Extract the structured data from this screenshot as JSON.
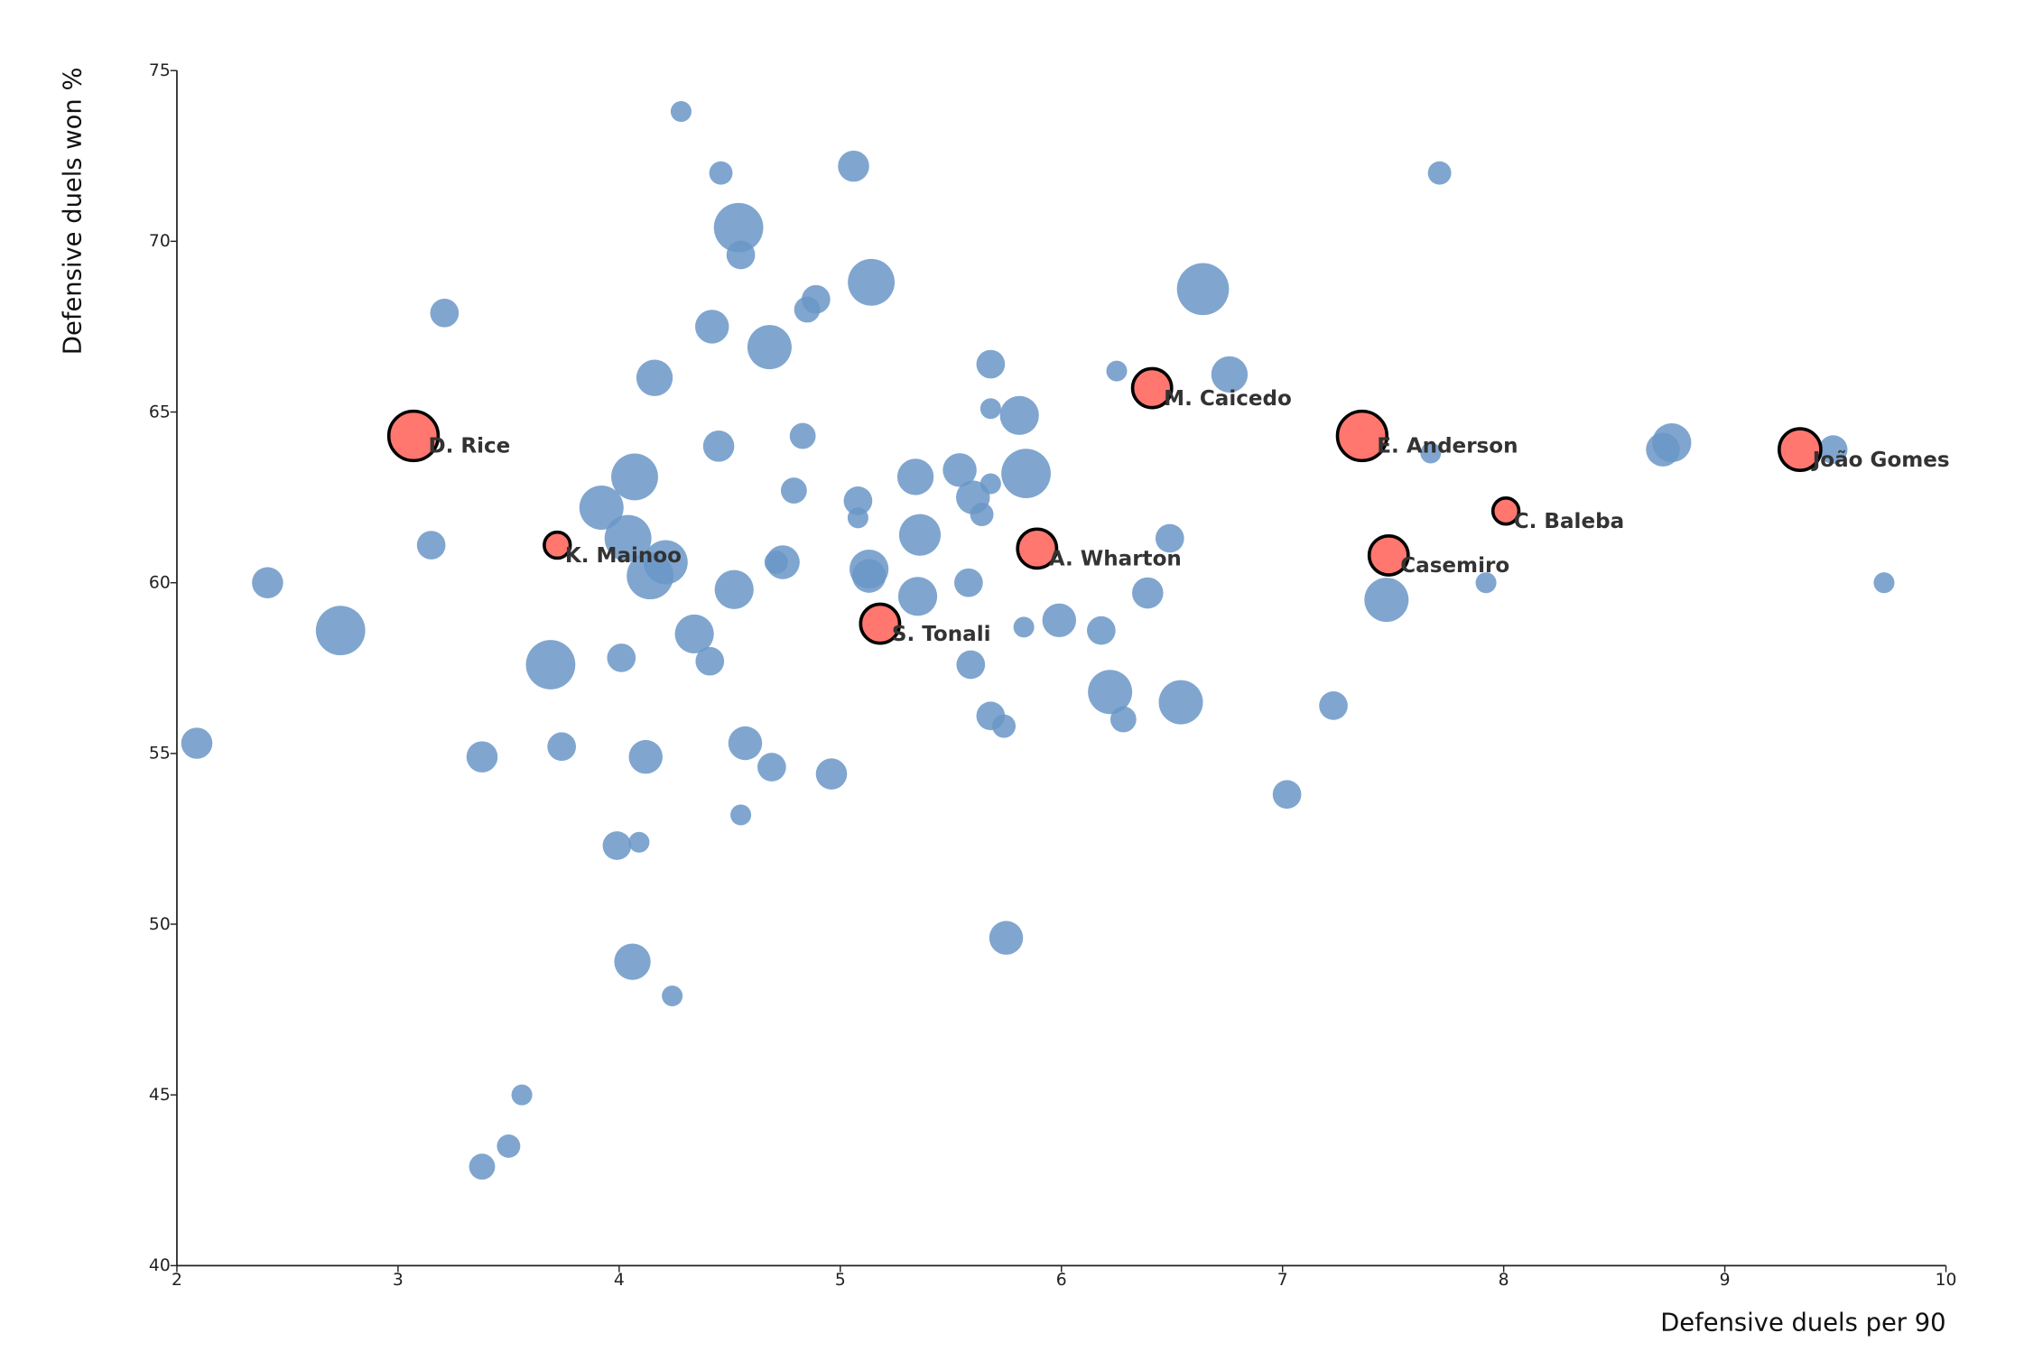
{
  "chart_data": {
    "type": "scatter",
    "x_label": "Defensive duels per 90",
    "y_label": "Defensive duels won %",
    "xlim": [
      2,
      10
    ],
    "xticks": [
      2,
      3,
      4,
      5,
      6,
      7,
      8,
      9,
      10
    ],
    "ylim": [
      40,
      75
    ],
    "yticks": [
      40,
      45,
      50,
      55,
      60,
      65,
      70,
      75
    ],
    "grid": false,
    "series": [
      {
        "color": "#6a97c7",
        "x": [
          4.28,
          4.46,
          5.06,
          7.71,
          4.54,
          4.55,
          5.14,
          6.64,
          4.89,
          4.85,
          3.21,
          4.42,
          4.68,
          5.68,
          6.25,
          6.76,
          4.16,
          5.68,
          5.81,
          4.83,
          4.45,
          8.76,
          8.72,
          9.49,
          7.67,
          5.54,
          5.84,
          4.07,
          5.34,
          5.68,
          4.79,
          5.6,
          5.08,
          3.92,
          5.64,
          5.08,
          5.36,
          6.49,
          4.04,
          3.15,
          4.21,
          4.74,
          4.71,
          5.13,
          5.13,
          4.14,
          2.41,
          5.58,
          7.92,
          9.72,
          4.52,
          5.35,
          6.39,
          7.47,
          5.99,
          5.83,
          6.18,
          2.74,
          4.34,
          4.01,
          4.41,
          5.59,
          3.69,
          6.22,
          6.54,
          7.23,
          5.68,
          6.28,
          5.74,
          2.09,
          4.57,
          3.74,
          3.38,
          4.12,
          4.69,
          4.96,
          7.02,
          4.55,
          3.99,
          4.09,
          5.75,
          4.06,
          4.24,
          3.56,
          3.5,
          3.38
        ],
        "y": [
          73.8,
          72.0,
          72.2,
          72.0,
          70.4,
          69.6,
          68.8,
          68.6,
          68.3,
          68.0,
          67.9,
          67.5,
          66.9,
          66.4,
          66.2,
          66.1,
          66.0,
          65.1,
          64.9,
          64.3,
          64.0,
          64.1,
          63.9,
          63.9,
          63.8,
          63.3,
          63.2,
          63.1,
          63.1,
          62.9,
          62.7,
          62.5,
          62.4,
          62.2,
          62.0,
          61.9,
          61.4,
          61.3,
          61.3,
          61.1,
          60.6,
          60.6,
          60.6,
          60.4,
          60.2,
          60.2,
          60.0,
          60.0,
          60.0,
          60.0,
          59.8,
          59.6,
          59.7,
          59.5,
          58.9,
          58.7,
          58.6,
          58.6,
          58.5,
          57.8,
          57.7,
          57.6,
          57.6,
          56.8,
          56.5,
          56.4,
          56.1,
          56.0,
          55.8,
          55.3,
          55.3,
          55.2,
          54.9,
          54.9,
          54.6,
          54.4,
          53.8,
          53.2,
          52.3,
          52.4,
          49.6,
          48.9,
          47.9,
          45.0,
          43.5,
          42.9
        ],
        "sizes": [
          8,
          9,
          12,
          9,
          19,
          11,
          18,
          20,
          11,
          10,
          11,
          13,
          17,
          11,
          8,
          14,
          14,
          8,
          15,
          10,
          12,
          15,
          13,
          11,
          8,
          13,
          19,
          18,
          14,
          8,
          10,
          13,
          11,
          17,
          9,
          8,
          16,
          11,
          18,
          11,
          17,
          13,
          9,
          15,
          13,
          18,
          12,
          11,
          8,
          8,
          15,
          15,
          12,
          17,
          13,
          8,
          11,
          19,
          15,
          11,
          11,
          11,
          19,
          17,
          17,
          11,
          11,
          10,
          9,
          12,
          13,
          11,
          12,
          13,
          11,
          12,
          11,
          8,
          11,
          8,
          13,
          14,
          8,
          8,
          9,
          10
        ]
      },
      {
        "color": "#ff6b63",
        "x": [
          3.07,
          3.72,
          5.18,
          5.89,
          6.41,
          7.36,
          7.48,
          8.01,
          9.34
        ],
        "y": [
          64.3,
          61.1,
          58.8,
          61.0,
          65.7,
          64.3,
          60.8,
          62.1,
          63.9
        ],
        "sizes": [
          19,
          10,
          15,
          15,
          15,
          19,
          15,
          10,
          16
        ],
        "labels": [
          "D. Rice",
          "K. Mainoo",
          "S. Tonali",
          "A. Wharton",
          "M. Caicedo",
          "E. Anderson",
          "Casemiro",
          "C. Baleba",
          "João Gomes"
        ]
      }
    ]
  }
}
